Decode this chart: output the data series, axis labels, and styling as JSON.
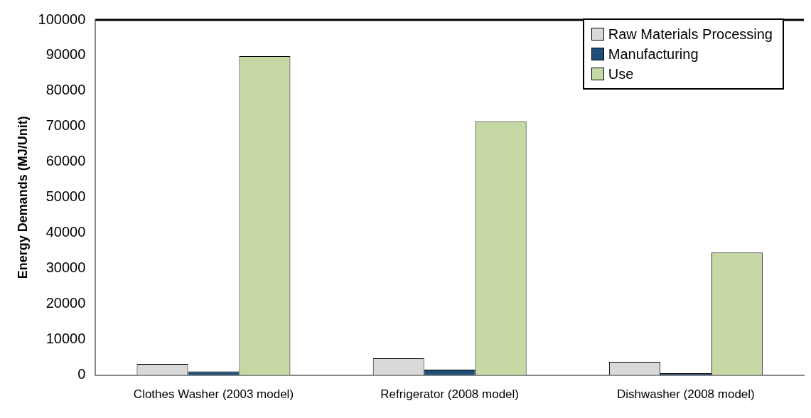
{
  "chart_data": {
    "type": "bar",
    "ylabel": "Energy Demands (MJ/Unit)",
    "categories": [
      "Clothes Washer (2003 model)",
      "Refrigerator (2008 model)",
      "Dishwasher (2008 model)"
    ],
    "series": [
      {
        "name": "Raw Materials Processing",
        "color": "#d9d9d9",
        "values": [
          3100,
          4700,
          3700
        ]
      },
      {
        "name": "Manufacturing",
        "color": "#1f4e79",
        "values": [
          1000,
          1500,
          500
        ]
      },
      {
        "name": "Use",
        "color": "#c6d9a5",
        "values": [
          89800,
          71500,
          34500
        ]
      }
    ],
    "ylim": [
      0,
      100000
    ],
    "yticks": [
      0,
      10000,
      20000,
      30000,
      40000,
      50000,
      60000,
      70000,
      80000,
      90000,
      100000
    ],
    "grid": false,
    "legend": "top right"
  }
}
